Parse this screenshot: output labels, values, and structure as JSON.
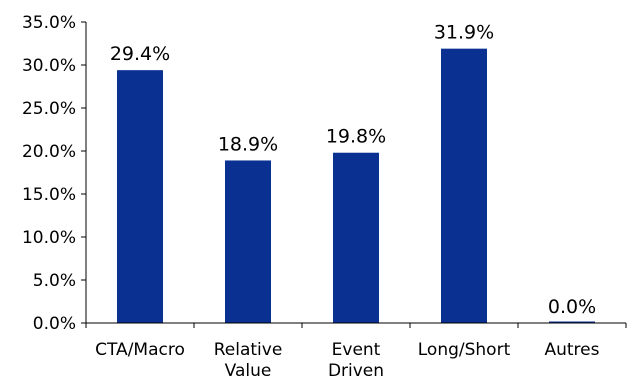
{
  "chart_data": {
    "type": "bar",
    "categories": [
      [
        "CTA/Macro"
      ],
      [
        "Relative",
        "Value"
      ],
      [
        "Event",
        "Driven"
      ],
      [
        "Long/Short"
      ],
      [
        "Autres"
      ]
    ],
    "values": [
      29.4,
      18.9,
      19.8,
      31.9,
      0.0
    ],
    "data_labels": [
      "29.4%",
      "18.9%",
      "19.8%",
      "31.9%",
      "0.0%"
    ],
    "y_ticks": [
      0,
      5,
      10,
      15,
      20,
      25,
      30,
      35
    ],
    "y_tick_labels": [
      "0.0%",
      "5.0%",
      "10.0%",
      "15.0%",
      "20.0%",
      "25.0%",
      "30.0%",
      "35.0%"
    ],
    "ylim": [
      0,
      35
    ],
    "title": "",
    "xlabel": "",
    "ylabel": "",
    "grid": false,
    "legend": "none",
    "bar_color": "#0a3192"
  }
}
